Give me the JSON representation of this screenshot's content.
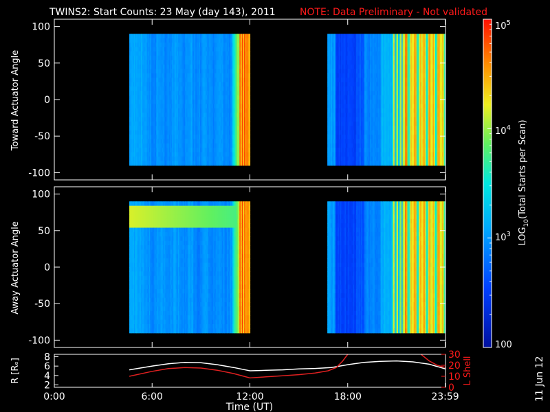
{
  "title": "TWINS2: Start Counts: 23 May (day 143), 2011",
  "note": "NOTE: Data Preliminary - Not validated",
  "stamp": "11 Jun 12",
  "colors": {
    "background": "#000000",
    "axes": "#ffffff",
    "note": "#ff1a1a",
    "r_line": "#ffffff",
    "lshell_line": "#e02020"
  },
  "chart_data": [
    {
      "type": "heatmap",
      "name": "toward",
      "ylabel": "Toward Actuator Angle",
      "ylim": [
        -110,
        110
      ],
      "yticks": [
        "100",
        "50",
        "0",
        "-50",
        "-100"
      ],
      "ytick_values": [
        100,
        50,
        0,
        -50,
        -100
      ],
      "xlim": [
        0,
        24
      ],
      "data_extent_y": [
        -90,
        90
      ],
      "data_windows_hours": [
        [
          4.6,
          12.0
        ],
        [
          16.75,
          24.0
        ]
      ]
    },
    {
      "type": "heatmap",
      "name": "away",
      "ylabel": "Away Actuator Angle",
      "ylim": [
        -110,
        110
      ],
      "yticks": [
        "100",
        "50",
        "0",
        "-50",
        "-100"
      ],
      "ytick_values": [
        100,
        50,
        0,
        -50,
        -100
      ],
      "xlim": [
        0,
        24
      ],
      "data_extent_y": [
        -90,
        90
      ],
      "data_windows_hours": [
        [
          4.6,
          12.0
        ],
        [
          16.75,
          24.0
        ]
      ]
    },
    {
      "type": "line",
      "name": "orbit",
      "ylabel": "R [Rₑ]",
      "ylabel_right": "L Shell",
      "ylim": [
        1.5,
        8.5
      ],
      "yticks": [
        "8",
        "6",
        "4",
        "2"
      ],
      "ytick_values": [
        8,
        6,
        4,
        2
      ],
      "y2lim": [
        0,
        30
      ],
      "y2ticks": [
        "30",
        "20",
        "10",
        "0"
      ],
      "y2tick_values": [
        30,
        20,
        10,
        0
      ],
      "series": [
        {
          "axis": "left",
          "color": "#ffffff",
          "x": [
            4.6,
            6,
            7,
            8,
            9,
            10,
            11,
            12,
            13,
            14,
            15,
            16,
            17,
            18,
            19,
            20,
            21,
            22,
            23,
            24
          ],
          "y": [
            5.2,
            6.0,
            6.5,
            6.8,
            6.7,
            6.3,
            5.7,
            5.0,
            5.1,
            5.2,
            5.4,
            5.5,
            5.7,
            6.3,
            6.8,
            7.0,
            7.1,
            6.9,
            6.4,
            5.4
          ]
        },
        {
          "axis": "right",
          "color": "#e02020",
          "x": [
            4.6,
            6,
            7,
            8,
            9,
            10,
            11,
            12,
            13,
            14,
            15,
            16,
            16.8,
            17.3,
            17.7,
            18.0
          ],
          "y": [
            10,
            14.5,
            17,
            18,
            17.5,
            15.5,
            12.5,
            8.5,
            9.5,
            10.5,
            11.5,
            13,
            15,
            18,
            24,
            30
          ]
        },
        {
          "axis": "right",
          "color": "#e02020",
          "x": [
            22.5,
            23,
            23.5,
            24
          ],
          "y": [
            30,
            24,
            20,
            18
          ]
        }
      ]
    }
  ],
  "xaxis": {
    "label": "Time (UT)",
    "ticks": [
      "0:00",
      "6:00",
      "12:00",
      "18:00",
      "23:59"
    ],
    "tick_values": [
      0,
      6,
      12,
      18,
      23.98
    ]
  },
  "colorbar": {
    "label_prefix": "LOG",
    "label_sub": "10",
    "label_suffix": "(Total Starts per Scan)",
    "tick_top_base": "10",
    "tick_top_exp": "5",
    "tick_mid_base": "10",
    "tick_mid_exp": "4",
    "tick_low_base": "10",
    "tick_low_exp": "3",
    "tick_bottom": "100",
    "tick_values": [
      5,
      4,
      3,
      2
    ],
    "range_log": [
      2,
      5
    ]
  }
}
